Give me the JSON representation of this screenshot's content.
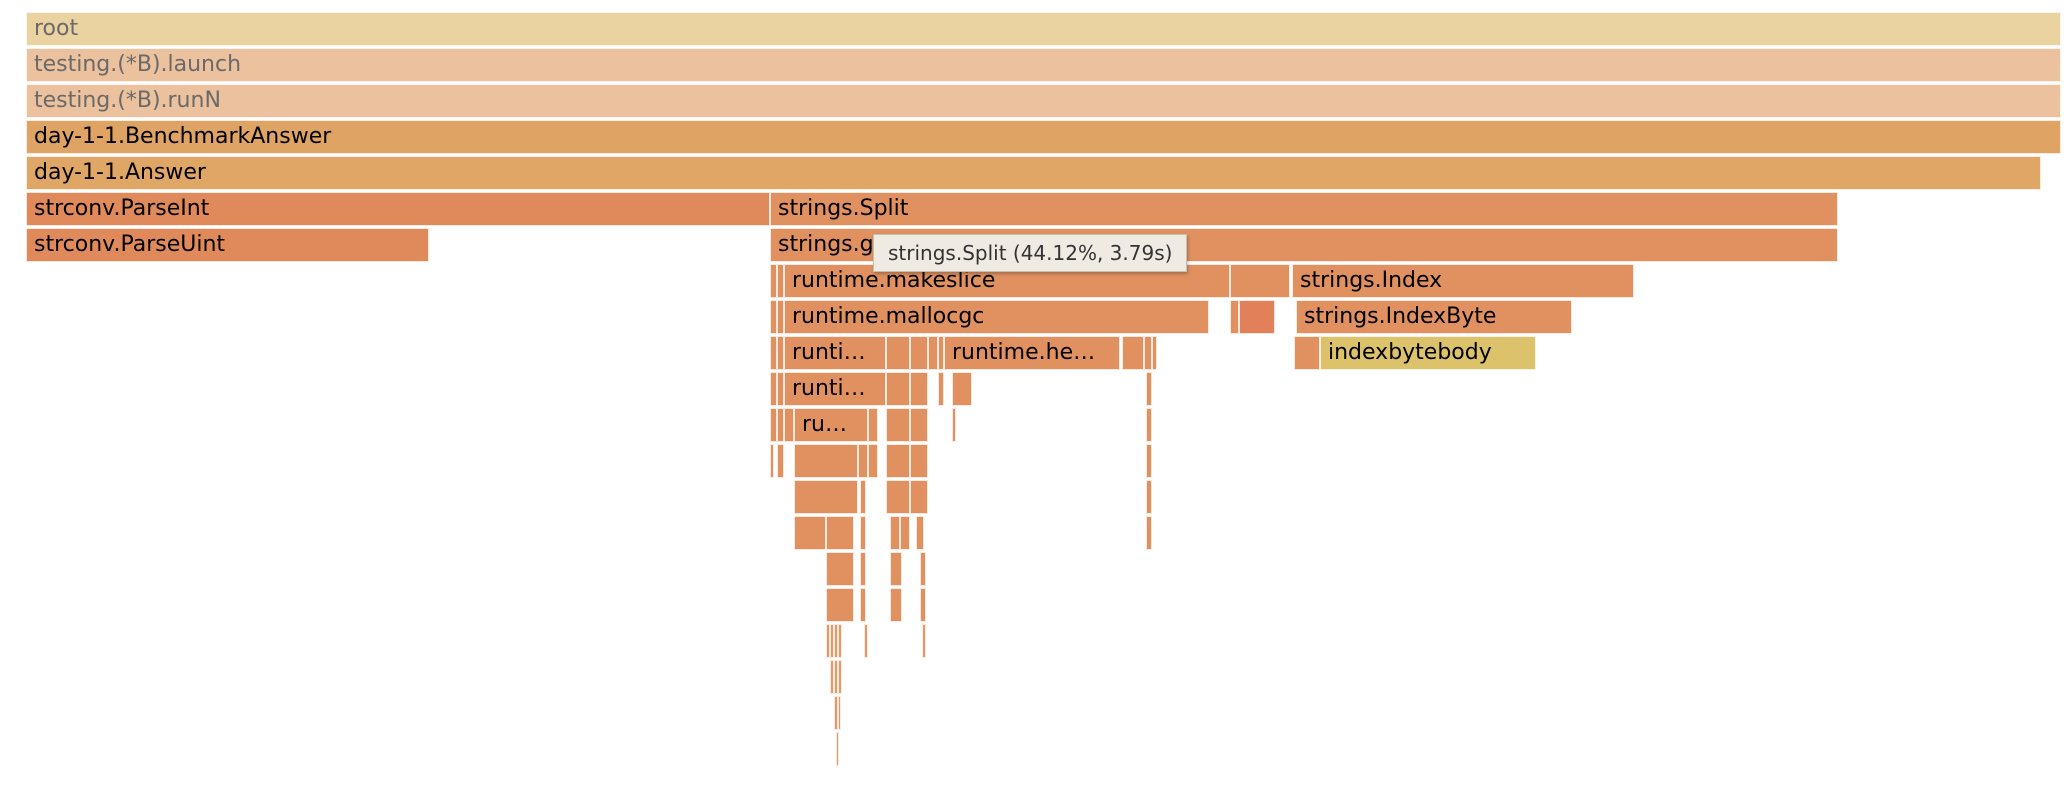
{
  "flamegraph": {
    "frames": {
      "root": "root",
      "b_launch": "testing.(*B).launch",
      "b_runn": "testing.(*B).runN",
      "benchmark_answer": "day-1-1.BenchmarkAnswer",
      "answer": "day-1-1.Answer",
      "parse_int": "strconv.ParseInt",
      "parse_uint": "strconv.ParseUint",
      "strings_split": "strings.Split",
      "strings_gensplit": "strings.genSplit",
      "makeslice": "runtime.makeslice",
      "strings_index": "strings.Index",
      "mallocgc": "runtime.mallocgc",
      "strings_indexbyte": "strings.IndexByte",
      "runtime_a": "runti…",
      "runtime_he": "runtime.he…",
      "indexbytebody": "indexbytebody",
      "runtime_b": "runti…",
      "runtime_c": "ru…"
    },
    "tooltip": "strings.Split (44.12%, 3.79s)"
  }
}
